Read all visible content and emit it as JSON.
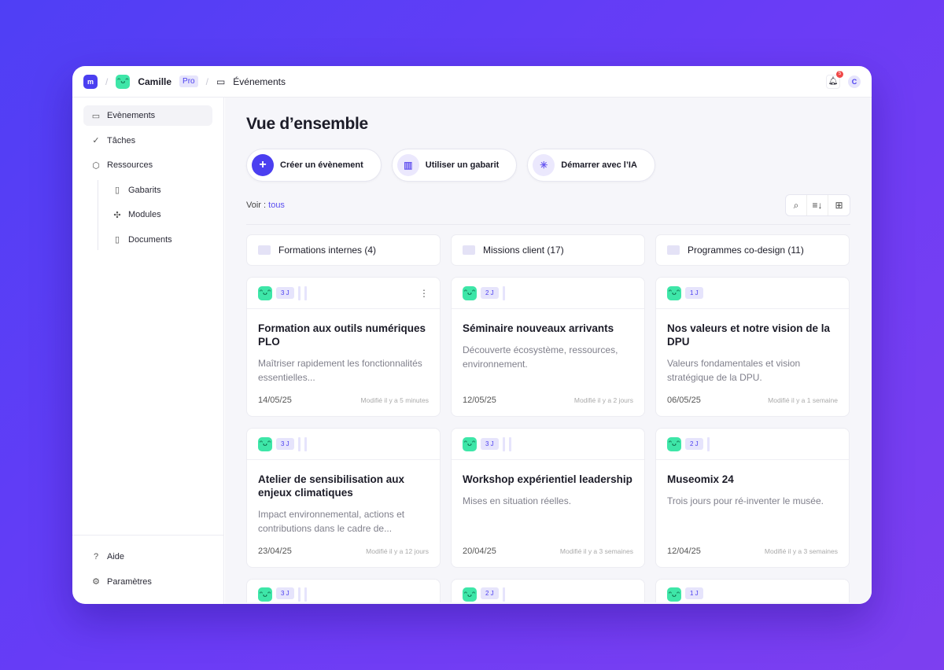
{
  "header": {
    "logo": "m",
    "user": "Camille",
    "plan": "Pro",
    "breadcrumb": "Événements",
    "notif_count": "5",
    "avatar": "C"
  },
  "sidebar": {
    "items": [
      {
        "label": "Evènements",
        "icon": "calendar-icon",
        "active": true
      },
      {
        "label": "Tâches",
        "icon": "check-circle-icon"
      },
      {
        "label": "Ressources",
        "icon": "box-icon"
      }
    ],
    "sub": [
      {
        "label": "Gabarits",
        "icon": "clipboard-icon"
      },
      {
        "label": "Modules",
        "icon": "puzzle-icon"
      },
      {
        "label": "Documents",
        "icon": "file-icon"
      }
    ],
    "bottom": [
      {
        "label": "Aide",
        "icon": "help-icon"
      },
      {
        "label": "Paramètres",
        "icon": "gear-icon"
      }
    ]
  },
  "main": {
    "title": "Vue d’ensemble",
    "actions": [
      {
        "label": "Créer un évènement",
        "icon": "plus-icon"
      },
      {
        "label": "Utiliser un gabarit",
        "icon": "book-icon"
      },
      {
        "label": "Démarrer avec l’IA",
        "icon": "sparkle-icon"
      }
    ],
    "view_label": "Voir :",
    "view_value": "tous",
    "folders": [
      "Formations internes (4)",
      "Missions client (17)",
      "Programmes co-design (11)"
    ],
    "cards": [
      {
        "dur": "3 J",
        "bars": 2,
        "title": "Formation aux outils numériques PLO",
        "desc": "Maîtriser rapidement les fonctionnalités essentielles...",
        "date": "14/05/25",
        "mod": "Modifié il y a 5 minutes",
        "menu": true
      },
      {
        "dur": "2 J",
        "bars": 1,
        "title": "Séminaire nouveaux arrivants",
        "desc": "Découverte écosystème, ressources, environnement.",
        "date": "12/05/25",
        "mod": "Modifié il y a 2 jours"
      },
      {
        "dur": "1 J",
        "bars": 0,
        "title": "Nos valeurs et notre vision de la DPU",
        "desc": "Valeurs fondamentales et vision stratégique de la DPU.",
        "date": "06/05/25",
        "mod": "Modifié il y a 1 semaine"
      },
      {
        "dur": "3 J",
        "bars": 2,
        "title": "Atelier de sensibilisation aux enjeux climatiques",
        "desc": "Impact environnemental, actions et contributions dans le cadre de...",
        "date": "23/04/25",
        "mod": "Modifié il y a 12 jours"
      },
      {
        "dur": "3 J",
        "bars": 2,
        "title": "Workshop expérientiel leadership",
        "desc": "Mises en situation réelles.",
        "date": "20/04/25",
        "mod": "Modifié il y a 3 semaines"
      },
      {
        "dur": "2 J",
        "bars": 1,
        "title": "Museomix 24",
        "desc": "Trois jours pour ré-inventer le musée.",
        "date": "12/04/25",
        "mod": "Modifié il y a 3 semaines"
      },
      {
        "dur": "3 J",
        "bars": 2
      },
      {
        "dur": "2 J",
        "bars": 1
      },
      {
        "dur": "1 J",
        "bars": 0
      }
    ]
  },
  "colors": {
    "accent": "#4b3ff0",
    "emoji": "#3ee6a8",
    "badge": "#f04848"
  }
}
